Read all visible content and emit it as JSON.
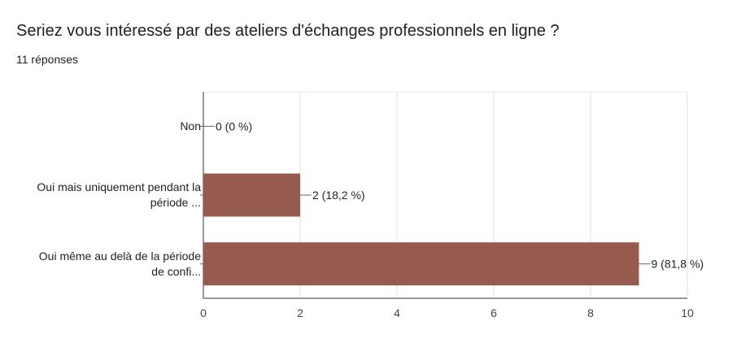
{
  "question": {
    "title": "Seriez vous intéressé par des ateliers d'échanges professionnels en ligne ?",
    "responses": "11 réponses"
  },
  "chart_data": {
    "type": "bar",
    "orientation": "horizontal",
    "categories": [
      [
        "Non"
      ],
      [
        "Oui mais uniquement pendant la",
        "période ..."
      ],
      [
        "Oui même au delà de la période",
        "de confi..."
      ]
    ],
    "values": [
      0,
      2,
      9
    ],
    "data_labels": [
      "0 (0 %)",
      "2 (18,2 %)",
      "9 (81,8 %)"
    ],
    "xlim": [
      0,
      10
    ],
    "xticks": [
      "0",
      "2",
      "4",
      "6",
      "8",
      "10"
    ],
    "grid": true,
    "bar_color": "#975a4e"
  }
}
